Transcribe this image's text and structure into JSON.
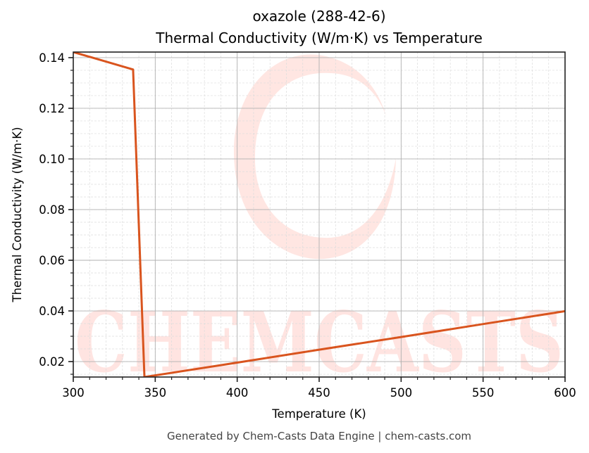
{
  "chart_data": {
    "type": "line",
    "title": "oxazole (288-42-6)",
    "subtitle": "Thermal Conductivity (W/m·K) vs Temperature",
    "xlabel": "Temperature (K)",
    "ylabel": "Thermal Conductivity (W/m·K)",
    "xlim": [
      300,
      600
    ],
    "ylim": [
      0.0139,
      0.1422
    ],
    "xticks": [
      300,
      350,
      400,
      450,
      500,
      550,
      600
    ],
    "xtick_labels": [
      "300",
      "350",
      "400",
      "450",
      "500",
      "550",
      "600"
    ],
    "yticks": [
      0.02,
      0.04,
      0.06,
      0.08,
      0.1,
      0.12,
      0.14
    ],
    "ytick_labels": [
      "0.02",
      "0.04",
      "0.06",
      "0.08",
      "0.10",
      "0.12",
      "0.14"
    ],
    "x_minor_step": 10,
    "y_minor_step": 0.005,
    "grid": true,
    "legend": null,
    "series": [
      {
        "name": "Thermal Conductivity",
        "color": "#d9541e",
        "x": [
          300,
          336.5,
          343.4,
          400,
          450,
          500,
          550,
          600
        ],
        "y": [
          0.1422,
          0.1353,
          0.0139,
          0.0196,
          0.0247,
          0.0297,
          0.0348,
          0.0399
        ]
      }
    ]
  },
  "watermark": {
    "text": "CHEMCASTS",
    "color": "#ff3b1f"
  },
  "footer": "Generated by Chem-Casts Data Engine | chem-casts.com"
}
